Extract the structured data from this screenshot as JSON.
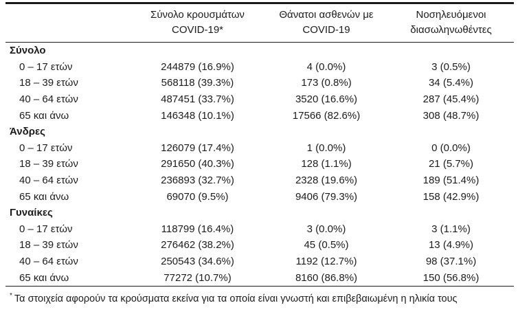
{
  "table": {
    "columns": [
      {
        "line1": "Σύνολο κρουσμάτων",
        "line2": "COVID-19*"
      },
      {
        "line1": "Θάνατοι ασθενών με",
        "line2": "COVID-19"
      },
      {
        "line1": "Νοσηλευόμενοι",
        "line2": "διασωληνωθέντες"
      }
    ],
    "sections": [
      {
        "title": "Σύνολο",
        "rows": [
          {
            "label": "0 – 17 ετών",
            "cases": "244879 (16.9%)",
            "deaths": "4 (0.0%)",
            "intubated": "3 (0.5%)"
          },
          {
            "label": "18 – 39 ετών",
            "cases": "568118 (39.3%)",
            "deaths": "173 (0.8%)",
            "intubated": "34 (5.4%)"
          },
          {
            "label": "40 – 64 ετών",
            "cases": "487451 (33.7%)",
            "deaths": "3520 (16.6%)",
            "intubated": "287 (45.4%)"
          },
          {
            "label": "65 και άνω",
            "cases": "146348 (10.1%)",
            "deaths": "17566 (82.6%)",
            "intubated": "308 (48.7%)"
          }
        ]
      },
      {
        "title": "Άνδρες",
        "rows": [
          {
            "label": "0 – 17 ετών",
            "cases": "126079 (17.4%)",
            "deaths": "1 (0.0%)",
            "intubated": "0 (0.0%)"
          },
          {
            "label": "18 – 39 ετών",
            "cases": "291650 (40.3%)",
            "deaths": "128 (1.1%)",
            "intubated": "21 (5.7%)"
          },
          {
            "label": "40 – 64 ετών",
            "cases": "236893 (32.7%)",
            "deaths": "2328 (19.6%)",
            "intubated": "189 (51.4%)"
          },
          {
            "label": "65 και άνω",
            "cases": "69070 (9.5%)",
            "deaths": "9406 (79.3%)",
            "intubated": "158 (42.9%)"
          }
        ]
      },
      {
        "title": "Γυναίκες",
        "rows": [
          {
            "label": "0 – 17 ετών",
            "cases": "118799 (16.4%)",
            "deaths": "3 (0.0%)",
            "intubated": "3 (1.1%)"
          },
          {
            "label": "18 – 39 ετών",
            "cases": "276462 (38.2%)",
            "deaths": "45 (0.5%)",
            "intubated": "13 (4.9%)"
          },
          {
            "label": "40 – 64 ετών",
            "cases": "250543 (34.6%)",
            "deaths": "1192 (12.7%)",
            "intubated": "98 (37.1%)"
          },
          {
            "label": "65 και άνω",
            "cases": "77272 (10.7%)",
            "deaths": "8160 (86.8%)",
            "intubated": "150 (56.8%)"
          }
        ]
      }
    ],
    "footnote": {
      "marker": "*",
      "text": "Τα στοιχεία αφορούν τα κρούσματα εκείνα για τα οποία είναι γνωστή και επιβεβαιωμένη η ηλικία τους"
    }
  },
  "colors": {
    "text": "#1b1b1b",
    "rule": "#1a1a1a",
    "background": "#ffffff"
  }
}
